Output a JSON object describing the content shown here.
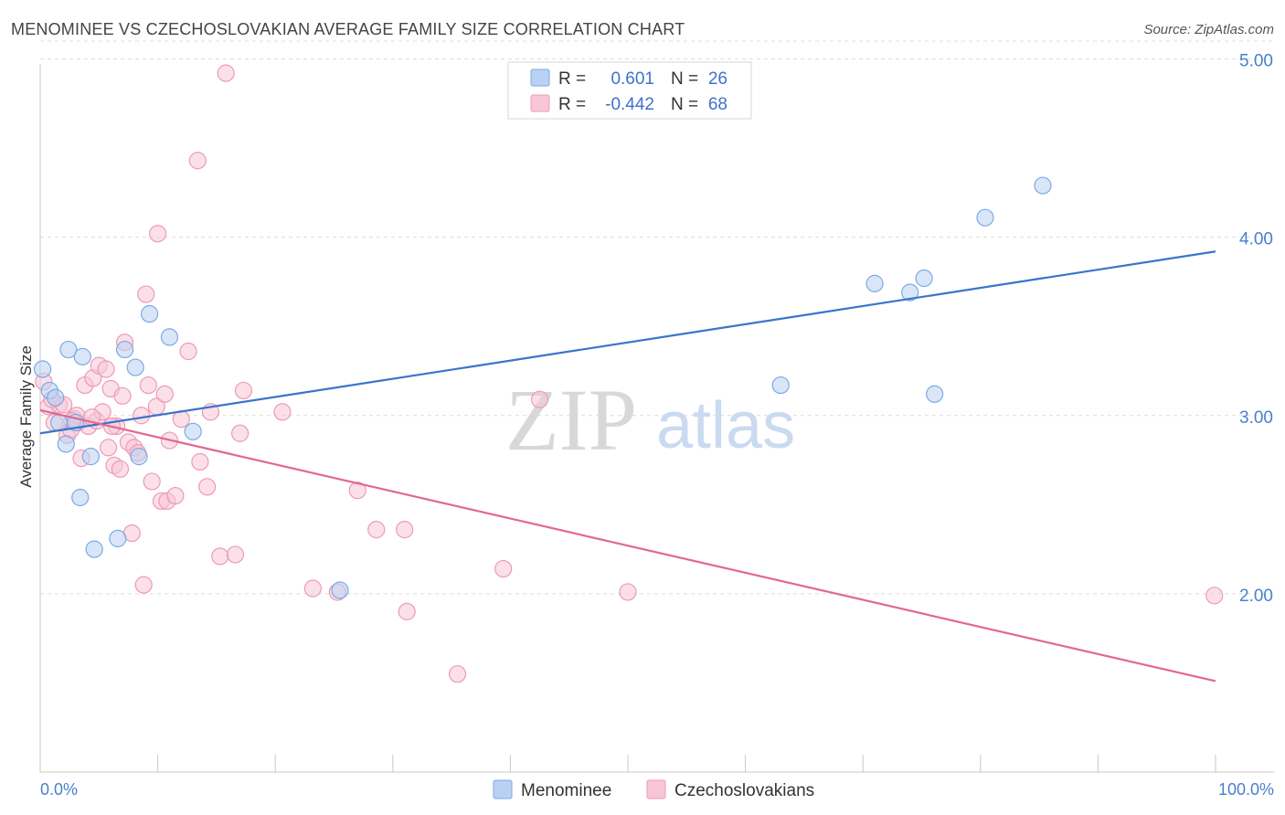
{
  "title": "MENOMINEE VS CZECHOSLOVAKIAN AVERAGE FAMILY SIZE CORRELATION CHART",
  "source": "Source: ZipAtlas.com",
  "watermark": {
    "zip": "ZIP",
    "atlas": "atlas"
  },
  "legend": {
    "r_label": "R =",
    "n_label": "N =",
    "rows": [
      {
        "r": "0.601",
        "n": "26"
      },
      {
        "r": "-0.442",
        "n": "68"
      }
    ]
  },
  "chart_data": {
    "type": "scatter",
    "title": "MENOMINEE VS CZECHOSLOVAKIAN AVERAGE FAMILY SIZE CORRELATION CHART",
    "xlabel": "",
    "ylabel": "Average Family Size",
    "xlim": [
      0,
      100
    ],
    "ylim": [
      1.0,
      5.1
    ],
    "x_tick_labels": [
      "0.0%",
      "100.0%"
    ],
    "y_ticks": [
      2.0,
      3.0,
      4.0,
      5.0
    ],
    "y_tick_labels": [
      "2.00",
      "3.00",
      "4.00",
      "5.00"
    ],
    "grid": true,
    "legend_position": "top-center",
    "series": [
      {
        "name": "Menominee",
        "color": "#7aaae8",
        "fill": "#b9d1f3",
        "trend": {
          "x": [
            0,
            100
          ],
          "y": [
            2.9,
            3.92
          ]
        },
        "points": [
          {
            "x": 0.2,
            "y": 3.26
          },
          {
            "x": 0.8,
            "y": 3.14
          },
          {
            "x": 1.3,
            "y": 3.1
          },
          {
            "x": 1.6,
            "y": 2.96
          },
          {
            "x": 2.2,
            "y": 2.84
          },
          {
            "x": 2.4,
            "y": 3.37
          },
          {
            "x": 3.0,
            "y": 2.96
          },
          {
            "x": 3.4,
            "y": 2.54
          },
          {
            "x": 3.6,
            "y": 3.33
          },
          {
            "x": 4.3,
            "y": 2.77
          },
          {
            "x": 4.6,
            "y": 2.25
          },
          {
            "x": 6.6,
            "y": 2.31
          },
          {
            "x": 7.2,
            "y": 3.37
          },
          {
            "x": 8.1,
            "y": 3.27
          },
          {
            "x": 8.4,
            "y": 2.77
          },
          {
            "x": 9.3,
            "y": 3.57
          },
          {
            "x": 11.0,
            "y": 3.44
          },
          {
            "x": 13.0,
            "y": 2.91
          },
          {
            "x": 25.5,
            "y": 2.02
          },
          {
            "x": 63.0,
            "y": 3.17
          },
          {
            "x": 71.0,
            "y": 3.74
          },
          {
            "x": 74.0,
            "y": 3.69
          },
          {
            "x": 75.2,
            "y": 3.77
          },
          {
            "x": 76.1,
            "y": 3.12
          },
          {
            "x": 80.4,
            "y": 4.11
          },
          {
            "x": 85.3,
            "y": 4.29
          }
        ]
      },
      {
        "name": "Czechoslovakians",
        "color": "#ee9ab5",
        "fill": "#f8c6d6",
        "trend": {
          "x": [
            0,
            100
          ],
          "y": [
            3.03,
            1.51
          ]
        },
        "points": [
          {
            "x": 0.3,
            "y": 3.19
          },
          {
            "x": 0.7,
            "y": 3.05
          },
          {
            "x": 1.2,
            "y": 2.96
          },
          {
            "x": 1.6,
            "y": 3.06
          },
          {
            "x": 2.0,
            "y": 3.06
          },
          {
            "x": 2.3,
            "y": 2.89
          },
          {
            "x": 2.6,
            "y": 2.92
          },
          {
            "x": 2.9,
            "y": 2.98
          },
          {
            "x": 3.2,
            "y": 2.96
          },
          {
            "x": 3.5,
            "y": 2.76
          },
          {
            "x": 3.8,
            "y": 3.17
          },
          {
            "x": 4.1,
            "y": 2.94
          },
          {
            "x": 4.5,
            "y": 3.21
          },
          {
            "x": 4.8,
            "y": 2.97
          },
          {
            "x": 5.0,
            "y": 3.28
          },
          {
            "x": 5.3,
            "y": 3.02
          },
          {
            "x": 5.6,
            "y": 3.26
          },
          {
            "x": 5.8,
            "y": 2.82
          },
          {
            "x": 6.0,
            "y": 3.15
          },
          {
            "x": 6.3,
            "y": 2.72
          },
          {
            "x": 6.5,
            "y": 2.94
          },
          {
            "x": 6.8,
            "y": 2.7
          },
          {
            "x": 7.0,
            "y": 3.11
          },
          {
            "x": 7.2,
            "y": 3.41
          },
          {
            "x": 7.5,
            "y": 2.85
          },
          {
            "x": 7.8,
            "y": 2.34
          },
          {
            "x": 8.0,
            "y": 2.82
          },
          {
            "x": 8.3,
            "y": 2.79
          },
          {
            "x": 8.6,
            "y": 3.0
          },
          {
            "x": 8.8,
            "y": 2.05
          },
          {
            "x": 9.0,
            "y": 3.68
          },
          {
            "x": 9.2,
            "y": 3.17
          },
          {
            "x": 9.5,
            "y": 2.63
          },
          {
            "x": 9.9,
            "y": 3.05
          },
          {
            "x": 10.0,
            "y": 4.02
          },
          {
            "x": 10.3,
            "y": 2.52
          },
          {
            "x": 10.6,
            "y": 3.12
          },
          {
            "x": 10.8,
            "y": 2.52
          },
          {
            "x": 11.0,
            "y": 2.86
          },
          {
            "x": 11.5,
            "y": 2.55
          },
          {
            "x": 12.0,
            "y": 2.98
          },
          {
            "x": 12.6,
            "y": 3.36
          },
          {
            "x": 13.4,
            "y": 4.43
          },
          {
            "x": 13.6,
            "y": 2.74
          },
          {
            "x": 14.2,
            "y": 2.6
          },
          {
            "x": 14.5,
            "y": 3.02
          },
          {
            "x": 15.3,
            "y": 2.21
          },
          {
            "x": 15.8,
            "y": 4.92
          },
          {
            "x": 16.6,
            "y": 2.22
          },
          {
            "x": 17.0,
            "y": 2.9
          },
          {
            "x": 17.3,
            "y": 3.14
          },
          {
            "x": 20.6,
            "y": 3.02
          },
          {
            "x": 23.2,
            "y": 2.03
          },
          {
            "x": 25.3,
            "y": 2.01
          },
          {
            "x": 27.0,
            "y": 2.58
          },
          {
            "x": 28.6,
            "y": 2.36
          },
          {
            "x": 31.2,
            "y": 1.9
          },
          {
            "x": 31.0,
            "y": 2.36
          },
          {
            "x": 35.5,
            "y": 1.55
          },
          {
            "x": 39.4,
            "y": 2.14
          },
          {
            "x": 42.5,
            "y": 3.09
          },
          {
            "x": 50.0,
            "y": 2.01
          },
          {
            "x": 99.9,
            "y": 1.99
          },
          {
            "x": 1.0,
            "y": 3.09
          },
          {
            "x": 3.1,
            "y": 3.0
          },
          {
            "x": 4.4,
            "y": 2.99
          },
          {
            "x": 6.1,
            "y": 2.94
          },
          {
            "x": 2.7,
            "y": 2.97
          }
        ]
      }
    ]
  }
}
